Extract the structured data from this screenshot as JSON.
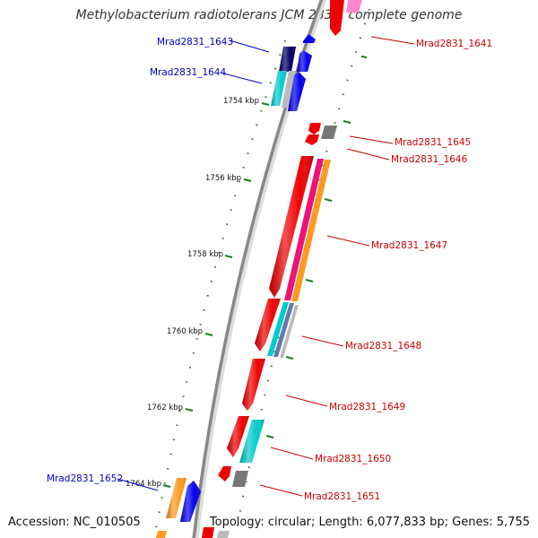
{
  "title": "Methylobacterium radiotolerans JCM 2831, complete genome",
  "accession": "Accession: NC_010505",
  "topology": "Topology: circular; Length: 6,077,833 bp; Genes: 5,755",
  "colors": {
    "backbone": "#888888",
    "forward_label": "#0000cc",
    "reverse_label": "#cc0000",
    "tick": "#1e7d1e",
    "red": "#ee0000",
    "blue": "#0000ee",
    "navy": "#000066",
    "cyan": "#00cccc",
    "magenta": "#ee1177",
    "orange": "#ff9922",
    "gray": "#777777",
    "silver": "#bbbbbb",
    "slate": "#6677aa",
    "pink": "#ff88cc"
  },
  "kbp_labels": [
    "1754 kbp",
    "1756 kbp",
    "1758 kbp",
    "1760 kbp",
    "1762 kbp",
    "1764 kbp"
  ],
  "gene_labels": [
    {
      "text": "Mrad2831_1641",
      "strand": "reverse"
    },
    {
      "text": "Mrad2831_1643",
      "strand": "forward"
    },
    {
      "text": "Mrad2831_1644",
      "strand": "forward"
    },
    {
      "text": "Mrad2831_1645",
      "strand": "reverse"
    },
    {
      "text": "Mrad2831_1646",
      "strand": "reverse"
    },
    {
      "text": "Mrad2831_1647",
      "strand": "reverse"
    },
    {
      "text": "Mrad2831_1648",
      "strand": "reverse"
    },
    {
      "text": "Mrad2831_1649",
      "strand": "reverse"
    },
    {
      "text": "Mrad2831_1650",
      "strand": "reverse"
    },
    {
      "text": "Mrad2831_1651",
      "strand": "reverse"
    },
    {
      "text": "Mrad2831_1652",
      "strand": "forward"
    }
  ]
}
